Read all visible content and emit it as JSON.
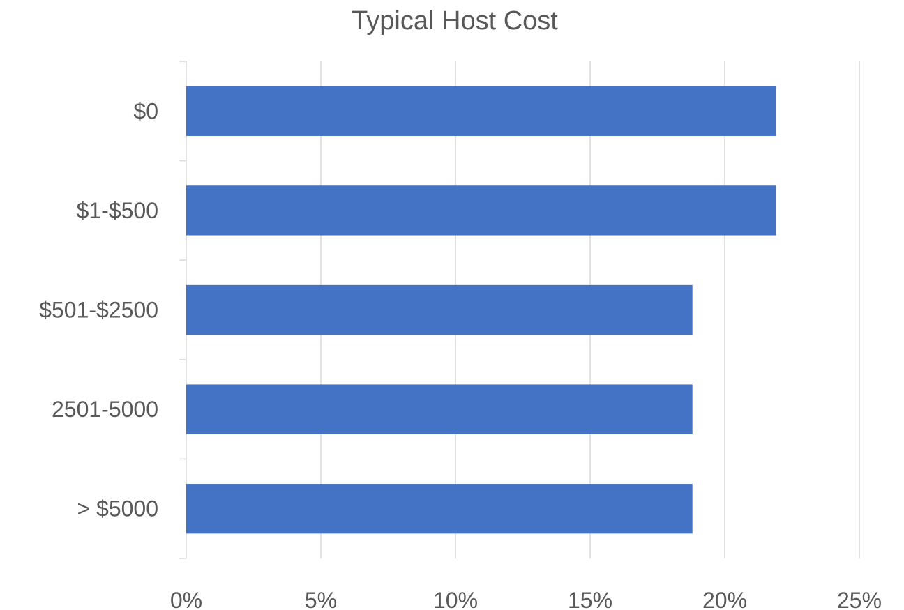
{
  "chart_data": {
    "type": "bar",
    "orientation": "horizontal",
    "title": "Typical Host Cost",
    "xlabel": "",
    "ylabel": "",
    "categories": [
      "$0",
      "$1-$500",
      "$501-$2500",
      "2501-5000",
      "> $5000"
    ],
    "values": [
      21.9,
      21.9,
      18.8,
      18.8,
      18.8
    ],
    "xlim": [
      0,
      25
    ],
    "x_ticks": [
      0,
      5,
      10,
      15,
      20,
      25
    ],
    "x_tick_labels": [
      "0%",
      "5%",
      "10%",
      "15%",
      "20%",
      "25%"
    ],
    "grid": true,
    "legend": "none",
    "bar_color": "#4472c4"
  }
}
